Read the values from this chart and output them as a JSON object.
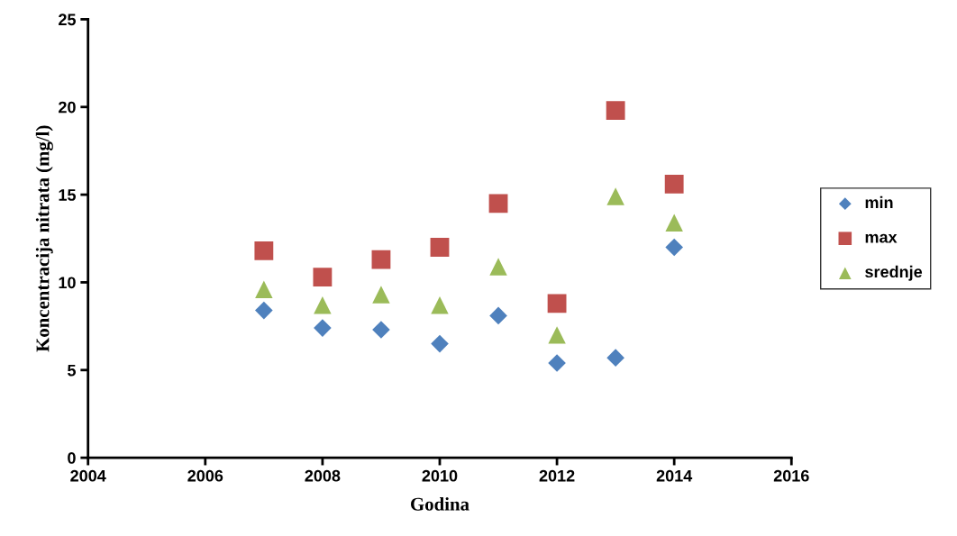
{
  "chart_data": {
    "type": "scatter",
    "xlabel": "Godina",
    "ylabel": "Koncentracija nitrata (mg/l)",
    "x": [
      2007,
      2008,
      2009,
      2010,
      2011,
      2012,
      2013,
      2014
    ],
    "series": [
      {
        "name": "min",
        "color": "#4f81bd",
        "marker": "diamond",
        "values": [
          8.4,
          7.4,
          7.3,
          6.5,
          8.1,
          5.4,
          5.7,
          12.0
        ]
      },
      {
        "name": "max",
        "color": "#c0504d",
        "marker": "square",
        "values": [
          11.8,
          10.3,
          11.3,
          12.0,
          14.5,
          8.8,
          19.8,
          15.6
        ]
      },
      {
        "name": "srednje",
        "color": "#9bbb59",
        "marker": "triangle",
        "values": [
          9.6,
          8.7,
          9.3,
          8.7,
          10.9,
          7.0,
          14.9,
          13.4
        ]
      }
    ],
    "xlim": [
      2004,
      2016
    ],
    "xticks": [
      2004,
      2006,
      2008,
      2010,
      2012,
      2014,
      2016
    ],
    "ylim": [
      0,
      25
    ],
    "yticks": [
      0,
      5,
      10,
      15,
      20,
      25
    ],
    "grid": false,
    "legend": "right"
  }
}
